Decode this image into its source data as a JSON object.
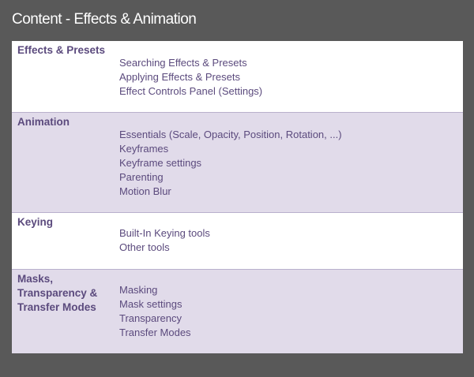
{
  "title": "Content - Effects & Animation",
  "sections": [
    {
      "heading": "Effects & Presets",
      "items": [
        "Searching Effects & Presets",
        "Applying Effects & Presets",
        "Effect Controls Panel (Settings)"
      ]
    },
    {
      "heading": "Animation",
      "items": [
        "Essentials (Scale, Opacity, Position, Rotation, ...)",
        "Keyframes",
        "Keyframe settings",
        "Parenting",
        "Motion Blur"
      ]
    },
    {
      "heading": "Keying",
      "items": [
        "Built-In Keying tools",
        "Other tools"
      ]
    },
    {
      "heading": "Masks, Transparency & Transfer Modes",
      "items": [
        "Masking",
        "Mask settings",
        "Transparency",
        "Transfer Modes"
      ]
    }
  ],
  "colors": {
    "background": "#595959",
    "text": "#5b4a7d",
    "row_light": "#ffffff",
    "row_shade": "#e1dbea"
  }
}
